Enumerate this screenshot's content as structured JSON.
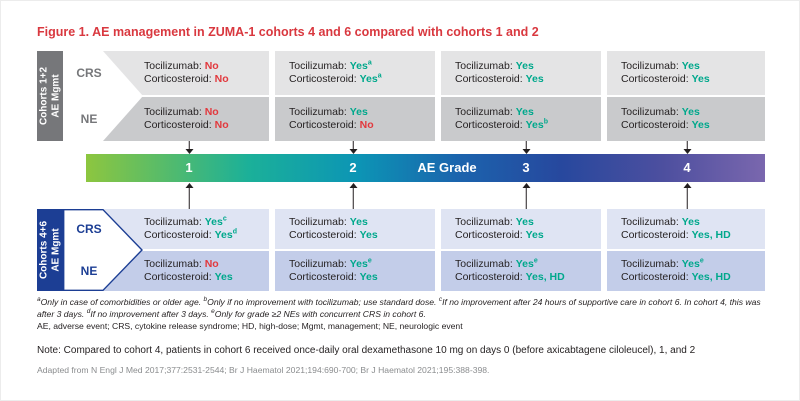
{
  "title": "Figure 1. AE management in ZUMA-1 cohorts 4 and 6 compared with cohorts 1 and 2",
  "labels": {
    "tocilizumab": "Tocilizumab:",
    "corticosteroid": "Corticosteroid:"
  },
  "axis": {
    "label": "AE Grade",
    "grades": [
      "1",
      "2",
      "3",
      "4"
    ]
  },
  "top_band": {
    "label_line1": "Cohorts 1+2",
    "label_line2": "AE Mgmt",
    "rows": [
      {
        "name": "CRS",
        "cells": [
          {
            "t": "No",
            "ts": "",
            "c": "No",
            "cs": ""
          },
          {
            "t": "Yes",
            "ts": "a",
            "c": "Yes",
            "cs": "a"
          },
          {
            "t": "Yes",
            "ts": "",
            "c": "Yes",
            "cs": ""
          },
          {
            "t": "Yes",
            "ts": "",
            "c": "Yes",
            "cs": ""
          }
        ]
      },
      {
        "name": "NE",
        "cells": [
          {
            "t": "No",
            "ts": "",
            "c": "No",
            "cs": ""
          },
          {
            "t": "Yes",
            "ts": "",
            "c": "No",
            "cs": ""
          },
          {
            "t": "Yes",
            "ts": "",
            "c": "Yes",
            "cs": "b"
          },
          {
            "t": "Yes",
            "ts": "",
            "c": "Yes",
            "cs": ""
          }
        ]
      }
    ]
  },
  "bottom_band": {
    "label_line1": "Cohorts 4+6",
    "label_line2": "AE Mgmt",
    "rows": [
      {
        "name": "CRS",
        "cells": [
          {
            "t": "Yes",
            "ts": "c",
            "c": "Yes",
            "cs": "d"
          },
          {
            "t": "Yes",
            "ts": "",
            "c": "Yes",
            "cs": ""
          },
          {
            "t": "Yes",
            "ts": "",
            "c": "Yes",
            "cs": ""
          },
          {
            "t": "Yes",
            "ts": "",
            "c": "Yes, HD",
            "cs": ""
          }
        ]
      },
      {
        "name": "NE",
        "cells": [
          {
            "t": "No",
            "ts": "",
            "c": "Yes",
            "cs": ""
          },
          {
            "t": "Yes",
            "ts": "e",
            "c": "Yes",
            "cs": ""
          },
          {
            "t": "Yes",
            "ts": "e",
            "c": "Yes, HD",
            "cs": ""
          },
          {
            "t": "Yes",
            "ts": "e",
            "c": "Yes, HD",
            "cs": ""
          }
        ]
      }
    ]
  },
  "footnotes": {
    "segments": [
      {
        "sup": "a",
        "text": "Only in case of comorbidities or older age. "
      },
      {
        "sup": "b",
        "text": "Only if no improvement with tocilizumab; use standard dose. "
      },
      {
        "sup": "c",
        "text": "If no improvement after 24 hours of supportive care in cohort 6. In cohort 4, this was after 3 days. "
      },
      {
        "sup": "d",
        "text": "If no improvement after 3 days. "
      },
      {
        "sup": "e",
        "text": "Only for grade ≥2 NEs with concurrent CRS in cohort 6."
      }
    ],
    "abbreviations": "AE, adverse event; CRS, cytokine release syndrome; HD, high-dose; Mgmt, management; NE, neurologic event"
  },
  "note": "Note: Compared to cohort 4, patients in cohort 6 received once-daily oral dexamethasone 10 mg on days 0 (before axicabtagene ciloleucel), 1, and 2",
  "source": "Adapted from N Engl J Med 2017;377:2531-2544; Br J Haematol 2021;194:690-700; Br J Haematol 2021;195:388-398.",
  "colors": {
    "yes": "#00a88c",
    "no": "#e2383d",
    "title_red": "#d9383f",
    "top_label_bg": "#76777a",
    "top_row1_bg": "#e4e4e5",
    "top_row2_bg": "#c9cacc",
    "top_tag_text": "#76777a",
    "bottom_label_bg": "#1c3e94",
    "bottom_row1_bg": "#dfe4f3",
    "bottom_row2_bg": "#c3cde9",
    "bottom_tag_text": "#1c3e94",
    "bar_gradient": [
      "#8dc63f",
      "#1bb099",
      "#0c95b5",
      "#1b63ad",
      "#27489e",
      "#4d4f9f",
      "#7a67ae"
    ],
    "text": "#231f20",
    "source_gray": "#8a8c8e"
  }
}
